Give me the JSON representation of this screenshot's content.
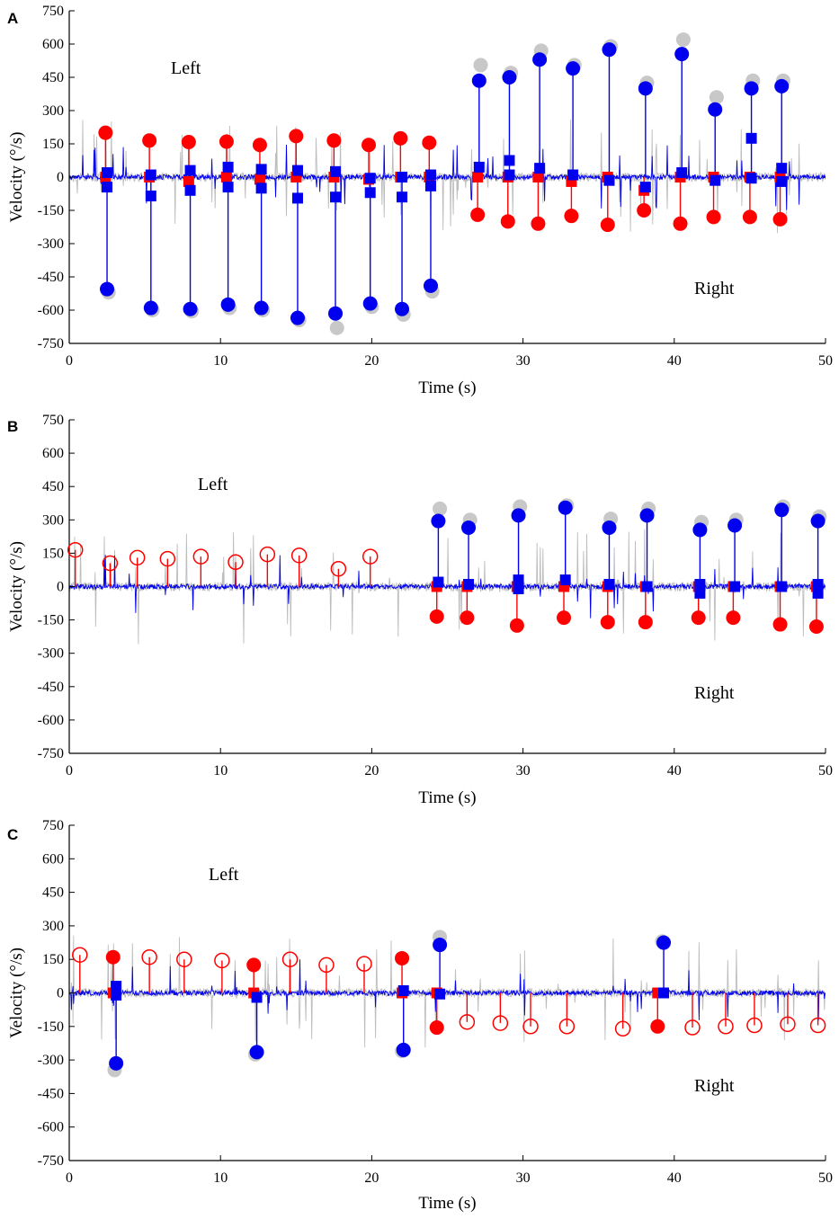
{
  "figure": {
    "colors": {
      "raw_trace": "#bdbdbd",
      "filtered_trace": "#0000ee",
      "left_marker": "#ff0000",
      "right_marker": "#0000ee",
      "peak_marker": "#c8c8c8",
      "axis": "#000000"
    }
  },
  "chart_data": [
    {
      "panel": "A",
      "type": "scatter",
      "title": "",
      "xlabel": "Time (s)",
      "ylabel": "Velocity (°/s)",
      "xlim": [
        0,
        50
      ],
      "ylim": [
        -750,
        750
      ],
      "xticks": [
        0,
        10,
        20,
        30,
        40,
        50
      ],
      "yticks": [
        750,
        600,
        450,
        300,
        150,
        0,
        -150,
        -300,
        -450,
        -600,
        -750
      ],
      "annotations": [
        "Left",
        "Right"
      ],
      "series": [
        {
          "name": "Red circles (filled)",
          "marker": "circle-filled",
          "color": "#ff0000",
          "x": [
            2.4,
            5.3,
            7.9,
            10.4,
            12.6,
            15.0,
            17.5,
            19.8,
            21.9,
            23.8,
            27.0,
            29.0,
            31.0,
            33.2,
            35.6,
            38.0,
            40.4,
            42.6,
            45.0,
            47.0
          ],
          "y": [
            200,
            165,
            158,
            160,
            145,
            185,
            165,
            145,
            175,
            155,
            -170,
            -200,
            -210,
            -175,
            -215,
            -150,
            -210,
            -180,
            -180,
            -190
          ]
        },
        {
          "name": "Red squares",
          "marker": "square",
          "color": "#ff0000",
          "x": [
            2.4,
            5.3,
            7.9,
            10.4,
            12.6,
            15.0,
            17.5,
            19.8,
            21.9,
            23.8,
            27.0,
            29.0,
            31.0,
            33.2,
            35.6,
            38.0,
            40.4,
            42.6,
            45.0,
            47.0
          ],
          "y": [
            0,
            0,
            -20,
            0,
            -10,
            0,
            0,
            -10,
            0,
            0,
            0,
            0,
            0,
            -20,
            0,
            -60,
            0,
            0,
            0,
            0
          ]
        },
        {
          "name": "Blue circles (filled)",
          "marker": "circle-filled",
          "color": "#0000ee",
          "x": [
            2.5,
            5.4,
            8.0,
            10.5,
            12.7,
            15.1,
            17.6,
            19.9,
            22.0,
            23.9,
            27.1,
            29.1,
            31.1,
            33.3,
            35.7,
            38.1,
            40.5,
            42.7,
            45.1,
            47.1
          ],
          "y": [
            -505,
            -590,
            -595,
            -575,
            -590,
            -635,
            -615,
            -570,
            -595,
            -490,
            435,
            450,
            530,
            490,
            575,
            400,
            555,
            305,
            400,
            410
          ]
        },
        {
          "name": "Blue squares",
          "marker": "square",
          "color": "#0000ee",
          "x": [
            2.5,
            2.5,
            5.4,
            5.4,
            8.0,
            8.0,
            10.5,
            10.5,
            12.7,
            12.7,
            15.1,
            15.1,
            17.6,
            17.6,
            19.9,
            19.9,
            22.0,
            22.0,
            23.9,
            23.9,
            27.1,
            29.1,
            29.1,
            31.1,
            33.3,
            35.7,
            38.1,
            40.5,
            42.7,
            45.1,
            45.1,
            47.1,
            47.1
          ],
          "y": [
            20,
            -45,
            10,
            -85,
            30,
            -60,
            45,
            -45,
            35,
            -50,
            30,
            -95,
            25,
            -90,
            -5,
            -70,
            0,
            -90,
            10,
            -40,
            45,
            75,
            10,
            40,
            10,
            -15,
            -45,
            20,
            -15,
            -5,
            175,
            40,
            -20
          ]
        },
        {
          "name": "Gray circles (peak)",
          "marker": "circle-filled",
          "color": "#c8c8c8",
          "x": [
            2.6,
            5.5,
            8.1,
            10.6,
            12.8,
            15.2,
            17.7,
            20.0,
            22.1,
            24.0,
            27.2,
            29.2,
            31.2,
            33.4,
            35.8,
            38.2,
            40.6,
            42.8,
            45.2,
            47.2
          ],
          "y": [
            -520,
            -600,
            -605,
            -590,
            -600,
            -645,
            -680,
            -585,
            -620,
            -515,
            505,
            470,
            570,
            505,
            590,
            425,
            620,
            360,
            435,
            435
          ]
        }
      ]
    },
    {
      "panel": "B",
      "type": "scatter",
      "title": "",
      "xlabel": "Time (s)",
      "ylabel": "Velocity (°/s)",
      "xlim": [
        0,
        50
      ],
      "ylim": [
        -750,
        750
      ],
      "xticks": [
        0,
        10,
        20,
        30,
        40,
        50
      ],
      "yticks": [
        750,
        600,
        450,
        300,
        150,
        0,
        -150,
        -300,
        -450,
        -600,
        -750
      ],
      "annotations": [
        "Left",
        "Right"
      ],
      "series": [
        {
          "name": "Red circles (open)",
          "marker": "circle-open",
          "color": "#ff0000",
          "x": [
            0.4,
            2.7,
            4.5,
            6.5,
            8.7,
            11.0,
            13.1,
            15.2,
            17.8,
            19.9
          ],
          "y": [
            165,
            105,
            130,
            125,
            135,
            110,
            145,
            140,
            80,
            135
          ]
        },
        {
          "name": "Red circles (filled)",
          "marker": "circle-filled",
          "color": "#ff0000",
          "x": [
            24.3,
            26.3,
            29.6,
            32.7,
            35.6,
            38.1,
            41.6,
            43.9,
            47.0,
            49.4
          ],
          "y": [
            -135,
            -140,
            -175,
            -140,
            -160,
            -160,
            -140,
            -140,
            -170,
            -180
          ]
        },
        {
          "name": "Red squares",
          "marker": "square",
          "color": "#ff0000",
          "x": [
            24.3,
            26.3,
            29.6,
            32.7,
            35.6,
            38.1,
            41.6,
            43.9,
            47.0,
            49.4
          ],
          "y": [
            0,
            0,
            0,
            0,
            0,
            0,
            0,
            0,
            0,
            0
          ]
        },
        {
          "name": "Blue circles (filled)",
          "marker": "circle-filled",
          "color": "#0000ee",
          "x": [
            24.4,
            26.4,
            29.7,
            32.8,
            35.7,
            38.2,
            41.7,
            44.0,
            47.1,
            49.5
          ],
          "y": [
            295,
            265,
            320,
            355,
            265,
            320,
            255,
            275,
            345,
            295
          ]
        },
        {
          "name": "Blue squares",
          "marker": "square",
          "color": "#0000ee",
          "x": [
            24.4,
            26.4,
            29.7,
            29.7,
            32.8,
            35.7,
            38.2,
            41.7,
            41.7,
            44.0,
            47.1,
            49.5,
            49.5
          ],
          "y": [
            20,
            10,
            30,
            -10,
            30,
            10,
            0,
            10,
            -30,
            0,
            0,
            10,
            -30
          ]
        },
        {
          "name": "Gray circles (peak)",
          "marker": "circle-filled",
          "color": "#c8c8c8",
          "x": [
            24.5,
            26.5,
            29.8,
            32.9,
            35.8,
            38.3,
            41.8,
            44.1,
            47.2,
            49.6
          ],
          "y": [
            350,
            300,
            360,
            365,
            305,
            350,
            290,
            300,
            360,
            315
          ]
        }
      ]
    },
    {
      "panel": "C",
      "type": "scatter",
      "title": "",
      "xlabel": "Time (s)",
      "ylabel": "Velocity (°/s)",
      "xlim": [
        0,
        50
      ],
      "ylim": [
        -750,
        750
      ],
      "xticks": [
        0,
        10,
        20,
        30,
        40,
        50
      ],
      "yticks": [
        750,
        600,
        450,
        300,
        150,
        0,
        -150,
        -300,
        -450,
        -600,
        -750
      ],
      "annotations": [
        "Left",
        "Right"
      ],
      "series": [
        {
          "name": "Red circles (open)",
          "marker": "circle-open",
          "color": "#ff0000",
          "x": [
            0.7,
            5.3,
            7.6,
            10.1,
            14.6,
            17.0,
            19.5,
            26.3,
            28.5,
            30.5,
            32.9,
            36.6,
            41.2,
            43.4,
            45.3,
            47.5,
            49.5
          ],
          "y": [
            170,
            160,
            150,
            145,
            150,
            125,
            130,
            -130,
            -135,
            -150,
            -150,
            -160,
            -155,
            -150,
            -145,
            -140,
            -145
          ]
        },
        {
          "name": "Red circles (filled)",
          "marker": "circle-filled",
          "color": "#ff0000",
          "x": [
            2.9,
            12.2,
            22.0,
            24.3,
            38.9
          ],
          "y": [
            160,
            125,
            155,
            -155,
            -150
          ]
        },
        {
          "name": "Red squares",
          "marker": "square",
          "color": "#ff0000",
          "x": [
            2.9,
            12.2,
            22.0,
            24.3,
            38.9
          ],
          "y": [
            0,
            0,
            0,
            0,
            0
          ]
        },
        {
          "name": "Blue circles (filled)",
          "marker": "circle-filled",
          "color": "#0000ee",
          "x": [
            3.1,
            12.4,
            22.1,
            24.5,
            39.3
          ],
          "y": [
            -315,
            -265,
            -255,
            215,
            225
          ]
        },
        {
          "name": "Blue squares",
          "marker": "square",
          "color": "#0000ee",
          "x": [
            3.1,
            3.1,
            12.4,
            22.1,
            24.5,
            39.3
          ],
          "y": [
            30,
            -10,
            -20,
            10,
            -5,
            0
          ]
        },
        {
          "name": "Gray circles (peak)",
          "marker": "circle-filled",
          "color": "#c8c8c8",
          "x": [
            3.0,
            12.3,
            22.0,
            24.5,
            39.2
          ],
          "y": [
            -345,
            -275,
            -260,
            250,
            230
          ]
        }
      ]
    }
  ]
}
